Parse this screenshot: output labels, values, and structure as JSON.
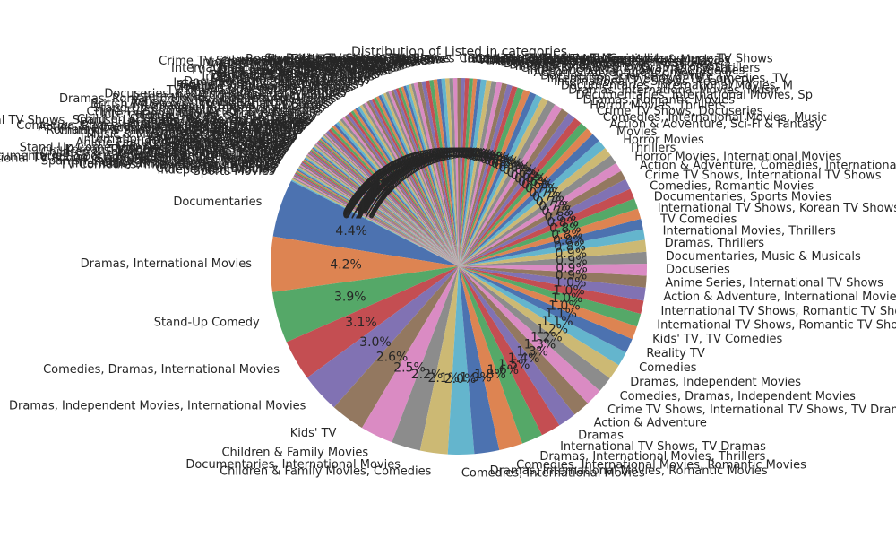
{
  "chart_data": {
    "type": "pie",
    "title": "Distribution of Listed in categories",
    "start_angle_deg": 153,
    "counterclock": true,
    "slices": [
      {
        "label": "Documentaries",
        "value": 4.4,
        "pct": "4.4%"
      },
      {
        "label": "Dramas, International Movies",
        "value": 4.2,
        "pct": "4.2%"
      },
      {
        "label": "Stand-Up Comedy",
        "value": 3.9,
        "pct": "3.9%"
      },
      {
        "label": "Comedies, Dramas, International Movies",
        "value": 3.1,
        "pct": "3.1%"
      },
      {
        "label": "Dramas, Independent Movies, International Movies",
        "value": 3.0,
        "pct": "3.0%"
      },
      {
        "label": "Kids' TV",
        "value": 2.6,
        "pct": "2.6%"
      },
      {
        "label": "Children & Family Movies",
        "value": 2.5,
        "pct": "2.5%"
      },
      {
        "label": "Documentaries, International Movies",
        "value": 2.2,
        "pct": "2.2%"
      },
      {
        "label": "Children & Family Movies, Comedies",
        "value": 2.1,
        "pct": "2.1%"
      },
      {
        "label": "Comedies, International Movies",
        "value": 2.0,
        "pct": "2.0%"
      },
      {
        "label": "Dramas, International Movies, Romantic Movies",
        "value": 1.9,
        "pct": "1.9%"
      },
      {
        "label": "Comedies, International Movies, Romantic Movies",
        "value": 1.8,
        "pct": "1.8%"
      },
      {
        "label": "Dramas, International Movies, Thrillers",
        "value": 1.6,
        "pct": "1.6%"
      },
      {
        "label": "International TV Shows, TV Dramas",
        "value": 1.5,
        "pct": "1.5%"
      },
      {
        "label": "Dramas",
        "value": 1.4,
        "pct": "1.4%"
      },
      {
        "label": "Action & Adventure",
        "value": 1.3,
        "pct": "1.3%"
      },
      {
        "label": "Crime TV Shows, International TV Shows, TV Dramas",
        "value": 1.3,
        "pct": "1.3%"
      },
      {
        "label": "Comedies, Dramas, Independent Movies",
        "value": 1.2,
        "pct": "1.2%"
      },
      {
        "label": "Dramas, Independent Movies",
        "value": 1.2,
        "pct": "1.2%"
      },
      {
        "label": "Comedies",
        "value": 1.1,
        "pct": "1.1%"
      },
      {
        "label": "Reality TV",
        "value": 1.1,
        "pct": "1.1%"
      },
      {
        "label": "Kids' TV, TV Comedies",
        "value": 1.0,
        "pct": "1.0%"
      },
      {
        "label": "International TV Shows, Romantic TV Shows, TV Dramas",
        "value": 1.0,
        "pct": "1.0%"
      },
      {
        "label": "International TV Shows, Romantic TV Shows, TV Comedies",
        "value": 1.0,
        "pct": "1.0%"
      },
      {
        "label": "Action & Adventure, International Movies",
        "value": 1.0,
        "pct": "1.0%"
      },
      {
        "label": "Anime Series, International TV Shows",
        "value": 0.9,
        "pct": "0.9%"
      },
      {
        "label": "Docuseries",
        "value": 0.9,
        "pct": "0.9%"
      },
      {
        "label": "Documentaries, Music & Musicals",
        "value": 0.9,
        "pct": "0.9%"
      },
      {
        "label": "Dramas, Thrillers",
        "value": 0.9,
        "pct": "0.9%"
      },
      {
        "label": "International Movies, Thrillers",
        "value": 0.8,
        "pct": "0.8%"
      },
      {
        "label": "TV Comedies",
        "value": 0.8,
        "pct": "0.8%"
      },
      {
        "label": "International TV Shows, Korean TV Shows",
        "value": 0.8,
        "pct": "0.8%"
      },
      {
        "label": "Documentaries, Sports Movies",
        "value": 0.8,
        "pct": "0.8%"
      },
      {
        "label": "Comedies, Romantic Movies",
        "value": 0.8,
        "pct": "0.8%"
      },
      {
        "label": "Crime TV Shows, International TV Shows",
        "value": 0.8,
        "pct": "0.8%"
      },
      {
        "label": "Action & Adventure, Comedies, International Movies",
        "value": 0.7,
        "pct": "0.7%"
      },
      {
        "label": "Horror Movies, International Movies",
        "value": 0.7,
        "pct": "0.7%"
      },
      {
        "label": "Thrillers",
        "value": 0.7,
        "pct": "0.7%"
      },
      {
        "label": "Horror Movies",
        "value": 0.7,
        "pct": "0.7%"
      },
      {
        "label": "Movies",
        "value": 0.7,
        "pct": "0.7%"
      },
      {
        "label": "Action & Adventure, Sci-Fi & Fantasy",
        "value": 0.7,
        "pct": "0.7%"
      },
      {
        "label": "Comedies, International Movies, Music",
        "value": 0.6,
        "pct": "0.6%"
      },
      {
        "label": "Crime TV Shows, Docuseries",
        "value": 0.6,
        "pct": "0.6%"
      },
      {
        "label": "Horror Movies, Thrillers",
        "value": 0.6,
        "pct": "0.6%"
      },
      {
        "label": "Dramas, Romantic Movies",
        "value": 0.6,
        "pct": "0.6%"
      },
      {
        "label": "Documentaries, International Movies, Sp",
        "value": 0.6,
        "pct": "0.6%"
      },
      {
        "label": "Dramas, International Movies, Music",
        "value": 0.6,
        "pct": "0.6%"
      },
      {
        "label": "Documentaries, International Movies, M",
        "value": 0.6,
        "pct": "0.6%"
      },
      {
        "label": "International TV Shows, Reality TV",
        "value": 0.5,
        "pct": "0.5%"
      },
      {
        "label": "International TV Shows, TV Comedies, TV",
        "value": 0.5,
        "pct": "0.5%"
      },
      {
        "label": "Docuseries, Science & Nature TV",
        "value": 0.5,
        "pct": "0.5%"
      },
      {
        "label": "Action & Adventure, Comedies",
        "value": 0.5,
        "pct": "0.5%"
      },
      {
        "label": "International TV Shows, TV Comedies",
        "value": 0.5,
        "pct": "0.5%"
      },
      {
        "label": "Crime TV Shows, TV Dramas, TV Thrillers",
        "value": 0.4,
        "pct": "0.4%"
      },
      {
        "label": "International TV Shows, TV Dramas",
        "value": 0.4,
        "pct": "0.4%"
      },
      {
        "label": "Dramas, TV Shows",
        "value": 0.4,
        "pct": "0.4%"
      },
      {
        "label": "Docuseries, International TV Shows",
        "value": 0.4,
        "pct": "0.4%"
      },
      {
        "label": "Comedies, Dramas",
        "value": 0.4,
        "pct": "0.4%"
      },
      {
        "label": "Action & Adventure, Independent Movies",
        "value": 0.4,
        "pct": "0.4%"
      },
      {
        "label": "Dramas, Sports Movies",
        "value": 0.4,
        "pct": "0.4%"
      },
      {
        "label": "Anime Features",
        "value": 0.3,
        "pct": "0.3%"
      },
      {
        "label": "Children & Family Movies, Music & Musicals",
        "value": 0.3,
        "pct": "0.3%"
      },
      {
        "label": "Kids' TV, Korean TV Shows",
        "value": 0.3,
        "pct": "0.3%"
      },
      {
        "label": "Romantic TV Shows, TV Comedies",
        "value": 0.3,
        "pct": "0.3%"
      },
      {
        "label": "International TV Shows, Spanish-Language TV Shows",
        "value": 0.3,
        "pct": "0.3%"
      },
      {
        "label": "Comedies, Independent Movies",
        "value": 0.3,
        "pct": "0.3%"
      },
      {
        "label": "British TV Shows, Docuseries",
        "value": 0.3,
        "pct": "0.3%"
      },
      {
        "label": "Stand-Up Comedy & Talk Shows",
        "value": 0.3,
        "pct": "0.3%"
      },
      {
        "label": "Reality TV, International TV Shows",
        "value": 0.3,
        "pct": "0.3%"
      },
      {
        "label": "Sci-Fi & Fantasy, Thrillers",
        "value": 0.3,
        "pct": "0.3%"
      },
      {
        "label": "Docuseries, Reality TV",
        "value": 0.3,
        "pct": "0.3%"
      },
      {
        "label": "Horror Movies, Independent Movies",
        "value": 0.3,
        "pct": "0.3%"
      },
      {
        "label": "Crime TV Shows, Spanish-Language TV Shows",
        "value": 0.3,
        "pct": "0.3%"
      },
      {
        "label": "International Movies, Romantic Movies",
        "value": 0.3,
        "pct": "0.3%"
      },
      {
        "label": "Children & Family Movies, Dramas",
        "value": 0.3,
        "pct": "0.3%"
      },
      {
        "label": "International TV Shows, TV Thrillers",
        "value": 0.3,
        "pct": "0.3%"
      },
      {
        "label": "Dramas, LGBTQ Movies",
        "value": 0.3,
        "pct": "0.3%"
      },
      {
        "label": "TV Dramas, TV Mysteries",
        "value": 0.2,
        "pct": "0.2%"
      },
      {
        "label": "Kids' TV, TV Action & Adventure",
        "value": 0.2,
        "pct": "0.2%"
      },
      {
        "label": "Music & Musicals",
        "value": 0.2,
        "pct": "0.2%"
      },
      {
        "label": "Romantic Movies",
        "value": 0.2,
        "pct": "0.2%"
      },
      {
        "label": "International Movies, Music & Musicals",
        "value": 0.2,
        "pct": "0.2%"
      },
      {
        "label": "TV Action & Adventure, TV Dramas",
        "value": 0.2,
        "pct": "0.2%"
      },
      {
        "label": "Docuseries, Science & Nature",
        "value": 0.2,
        "pct": "0.2%"
      },
      {
        "label": "Comedies, Sports Movies",
        "value": 0.2,
        "pct": "0.2%"
      },
      {
        "label": "Anime Series, Kids' TV",
        "value": 0.2,
        "pct": "0.2%"
      },
      {
        "label": "British TV Shows, Reality TV",
        "value": 0.2,
        "pct": "0.2%"
      },
      {
        "label": "Comedies, Music & Musicals",
        "value": 0.2,
        "pct": "0.2%"
      },
      {
        "label": "Docuseries, Crime TV Shows",
        "value": 0.2,
        "pct": "0.2%"
      },
      {
        "label": "Independent Movies, Thrillers",
        "value": 0.2,
        "pct": "0.2%"
      },
      {
        "label": "Dramas, Faith & Spirituality",
        "value": 0.2,
        "pct": "0.2%"
      },
      {
        "label": "TV Comedies, TV Dramas",
        "value": 0.2,
        "pct": "0.2%"
      },
      {
        "label": "Sci-Fi & Fantasy",
        "value": 0.2,
        "pct": "0.2%"
      },
      {
        "label": "Documentaries, LGBTQ Movies",
        "value": 0.2,
        "pct": "0.2%"
      },
      {
        "label": "International TV Shows, Kids' TV",
        "value": 0.2,
        "pct": "0.2%"
      },
      {
        "label": "Crime TV Shows, TV Comedies",
        "value": 0.2,
        "pct": "0.2%"
      },
      {
        "label": "Reality TV, Romantic TV Shows",
        "value": 0.2,
        "pct": "0.2%"
      },
      {
        "label": "Action & Adventure, Dramas",
        "value": 0.2,
        "pct": "0.2%"
      },
      {
        "label": "Thrillers, Independent Movies",
        "value": 0.2,
        "pct": "0.2%"
      },
      {
        "label": "TV Dramas, TV Sci-Fi & Fantasy",
        "value": 0.2,
        "pct": "0.2%"
      },
      {
        "label": "Kids' TV, TV Dramas",
        "value": 0.2,
        "pct": "0.2%"
      },
      {
        "label": "Docuseries, Spanish-Language TV Shows",
        "value": 0.2,
        "pct": "0.2%"
      },
      {
        "label": "Comedies, Cult Movies",
        "value": 0.2,
        "pct": "0.2%"
      },
      {
        "label": "International TV Shows, Docuseries",
        "value": 0.2,
        "pct": "0.2%"
      },
      {
        "label": "Dramas, Romantic Movies, Independent Movies",
        "value": 0.2,
        "pct": "0.2%"
      },
      {
        "label": "TV Horror, TV Mysteries",
        "value": 0.2,
        "pct": "0.2%"
      },
      {
        "label": "Action & Adventure, Horror Movies",
        "value": 0.2,
        "pct": "0.2%"
      },
      {
        "label": "British TV Shows, International TV Shows",
        "value": 0.2,
        "pct": "0.2%"
      },
      {
        "label": "Romantic TV Shows, TV Dramas",
        "value": 0.2,
        "pct": "0.2%"
      },
      {
        "label": "Stand-Up Comedy, International Movies",
        "value": 0.2,
        "pct": "0.2%"
      },
      {
        "label": "Reality TV, TV Comedies",
        "value": 0.2,
        "pct": "0.2%"
      },
      {
        "label": "Crime TV Shows, TV Action & Adventure",
        "value": 0.2,
        "pct": "0.2%"
      },
      {
        "label": "International Movies, Sci-Fi & Fantasy",
        "value": 0.2,
        "pct": "0.2%"
      },
      {
        "label": "Horror Movies, Sci-Fi & Fantasy",
        "value": 0.2,
        "pct": "0.2%"
      },
      {
        "label": "Kids' TV, TV Sci-Fi & Fantasy",
        "value": 0.2,
        "pct": "0.2%"
      },
      {
        "label": "Children & Family Movies, Sports Movies",
        "value": 0.1,
        "pct": "0.1%"
      },
      {
        "label": "International TV Shows, Spanish-Language TV Shows, TV Dramas",
        "value": 0.1,
        "pct": "0.1%"
      },
      {
        "label": "Cult Movies, Horror Movies",
        "value": 0.1,
        "pct": "0.1%"
      },
      {
        "label": "Docuseries, TV Comedies",
        "value": 0.1,
        "pct": "0.1%"
      },
      {
        "label": "British TV Shows, TV Comedies",
        "value": 0.1,
        "pct": "0.1%"
      },
      {
        "label": "Anime Series, Crime TV Shows",
        "value": 0.1,
        "pct": "0.1%"
      },
      {
        "label": "Comedies, Romantic Movies, International Movies",
        "value": 0.1,
        "pct": "0.1%"
      },
      {
        "label": "Action & Adventure, Children & Family Movies",
        "value": 0.1,
        "pct": "0.1%"
      },
      {
        "label": "Documentaries, Faith & Spirituality",
        "value": 0.1,
        "pct": "0.1%"
      },
      {
        "label": "TV Dramas, TV Thrillers",
        "value": 0.1,
        "pct": "0.1%"
      },
      {
        "label": "Romantic TV Shows, International TV Shows",
        "value": 0.1,
        "pct": "0.1%"
      },
      {
        "label": "Children & Family Movies, Documentaries",
        "value": 0.1,
        "pct": "0.1%"
      },
      {
        "label": "Crime TV Shows, Kids' TV",
        "value": 0.1,
        "pct": "0.1%"
      },
      {
        "label": "Dramas, Sci-Fi & Fantasy",
        "value": 0.1,
        "pct": "0.1%"
      },
      {
        "label": "Music & Musicals, Stand-Up Comedy",
        "value": 0.1,
        "pct": "0.1%"
      },
      {
        "label": "Kids' TV, TV Thrillers",
        "value": 0.1,
        "pct": "0.1%"
      },
      {
        "label": "Comedies, LGBTQ Movies",
        "value": 0.1,
        "pct": "0.1%"
      },
      {
        "label": "Science & Nature TV",
        "value": 0.1,
        "pct": "0.1%"
      },
      {
        "label": "International Movies, Documentaries",
        "value": 0.1,
        "pct": "0.1%"
      },
      {
        "label": "Horror Movies, Comedies",
        "value": 0.1,
        "pct": "0.1%"
      },
      {
        "label": "TV Mysteries, TV Thrillers",
        "value": 0.1,
        "pct": "0.1%"
      },
      {
        "label": "Anime Features, International Movies",
        "value": 0.1,
        "pct": "0.1%"
      },
      {
        "label": "Reality TV, Docuseries",
        "value": 0.1,
        "pct": "0.1%"
      },
      {
        "label": "Classic Movies, Dramas",
        "value": 0.1,
        "pct": "0.1%"
      },
      {
        "label": "Romantic Movies, Comedies",
        "value": 0.1,
        "pct": "0.1%"
      },
      {
        "label": "Stand-Up Comedy & Talk Shows, TV Comedies",
        "value": 0.1,
        "pct": "0.1%"
      },
      {
        "label": "Independent Movies, Dramas",
        "value": 0.1,
        "pct": "0.1%"
      },
      {
        "label": "Korean TV Shows, Romantic TV Shows",
        "value": 0.1,
        "pct": "0.1%"
      },
      {
        "label": "TV Comedies, Teen TV Shows",
        "value": 0.1,
        "pct": "0.1%"
      },
      {
        "label": "Children & Family Movies, Anime Features",
        "value": 0.1,
        "pct": "0.1%"
      },
      {
        "label": "LGBTQ Movies, Dramas",
        "value": 0.1,
        "pct": "0.1%"
      },
      {
        "label": "Action & Adventure, Thrillers",
        "value": 0.1,
        "pct": "0.1%"
      },
      {
        "label": "Documentaries, Sports Movies, International Movies",
        "value": 0.1,
        "pct": "0.1%"
      },
      {
        "label": "TV Action & Adventure, TV Sci-Fi & Fantasy",
        "value": 0.1,
        "pct": "0.1%"
      },
      {
        "label": "International TV Shows, Stand-Up Comedy & Talk Shows",
        "value": 0.1,
        "pct": "0.1%"
      },
      {
        "label": "Classic Movies, Comedies",
        "value": 0.1,
        "pct": "0.1%"
      },
      {
        "label": "Spanish-Language TV Shows, TV Dramas",
        "value": 0.1,
        "pct": "0.1%"
      },
      {
        "label": "Reality TV, Science & Nature TV",
        "value": 0.1,
        "pct": "0.1%"
      },
      {
        "label": "International Movies, Horror Movies",
        "value": 0.1,
        "pct": "0.1%"
      },
      {
        "label": "TV Comedies, International TV Shows",
        "value": 0.1,
        "pct": "0.1%"
      },
      {
        "label": "Docuseries, Kids' TV",
        "value": 0.1,
        "pct": "0.1%"
      },
      {
        "label": "Anime Series",
        "value": 0.1,
        "pct": "0.1%"
      },
      {
        "label": "Cult Movies, Dramas",
        "value": 0.1,
        "pct": "0.1%"
      },
      {
        "label": "Independent Movies",
        "value": 0.1,
        "pct": "0.1%"
      },
      {
        "label": "Sports Movies",
        "value": 0.1,
        "pct": "0.1%"
      }
    ]
  }
}
